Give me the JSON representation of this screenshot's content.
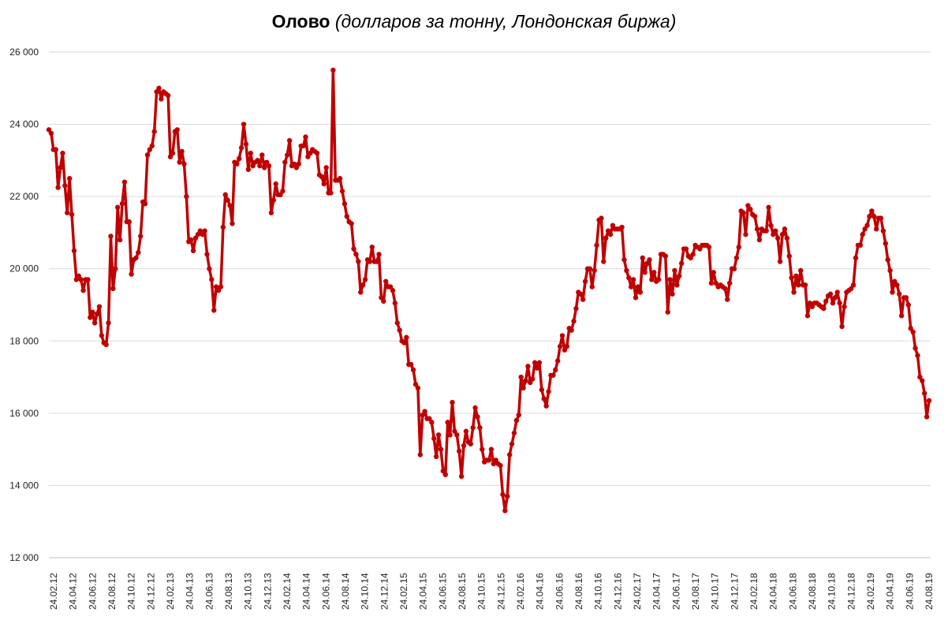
{
  "chart_data": {
    "type": "line",
    "title_bold": "Олово",
    "title_italic": "(долларов за тонну, Лондонская биржа)",
    "xlabel": "",
    "ylabel": "",
    "ylim": [
      12000,
      26000
    ],
    "y_ticks": [
      12000,
      14000,
      16000,
      18000,
      20000,
      22000,
      24000,
      26000
    ],
    "y_tick_labels": [
      "12 000",
      "14 000",
      "16 000",
      "18 000",
      "20 000",
      "22 000",
      "24 000",
      "26 000"
    ],
    "x_tick_labels": [
      "24.02.12",
      "24.04.12",
      "24.06.12",
      "24.08.12",
      "24.10.12",
      "24.12.12",
      "24.02.13",
      "24.04.13",
      "24.06.13",
      "24.08.13",
      "24.10.13",
      "24.12.13",
      "24.02.14",
      "24.04.14",
      "24.06.14",
      "24.08.14",
      "24.10.14",
      "24.12.14",
      "24.02.15",
      "24.04.15",
      "24.06.15",
      "24.08.15",
      "24.10.15",
      "24.12.15",
      "24.02.16",
      "24.04.16",
      "24.06.16",
      "24.08.16",
      "24.10.16",
      "24.12.16",
      "24.02.17",
      "24.04.17",
      "24.06.17",
      "24.08.17",
      "24.10.17",
      "24.12.17",
      "24.02.18",
      "24.04.18",
      "24.06.18",
      "24.08.18",
      "24.10.18",
      "24.12.18",
      "24.02.19",
      "24.04.19",
      "24.06.19",
      "24.08.19"
    ],
    "grid": true,
    "line_color": "#C00000",
    "series": [
      {
        "values": [
          23850,
          23750,
          23300,
          23300,
          22250,
          22800,
          23200,
          22300,
          21550,
          22500,
          21500,
          20500,
          19700,
          19800,
          19700,
          19400,
          19700,
          19700,
          18650,
          18800,
          18500,
          18750,
          18950,
          18150,
          17950,
          17900,
          18500,
          20900,
          19450,
          20000,
          21700,
          20800,
          21800,
          22400,
          21300,
          21300,
          19850,
          20250,
          20300,
          20450,
          20900,
          21850,
          21800,
          23150,
          23300,
          23400,
          23800,
          24900,
          25000,
          24700,
          24900,
          24850,
          24800,
          23100,
          23200,
          23800,
          23850,
          22950,
          23250,
          22900,
          22000,
          20750,
          20800,
          20500,
          20850,
          20950,
          21050,
          20950,
          21050,
          20400,
          20000,
          19700,
          18850,
          19500,
          19400,
          19500,
          21150,
          22050,
          21900,
          21750,
          21250,
          22950,
          22900,
          23050,
          23350,
          24000,
          23450,
          22750,
          23200,
          22850,
          22950,
          23000,
          22850,
          23150,
          22800,
          22950,
          22850,
          21550,
          21900,
          22350,
          22050,
          22050,
          22150,
          22950,
          23150,
          23550,
          22850,
          22900,
          22800,
          22900,
          23400,
          23400,
          23650,
          23100,
          23200,
          23300,
          23250,
          23200,
          22600,
          22550,
          22350,
          22800,
          22100,
          22100,
          25500,
          22450,
          22450,
          22500,
          22150,
          21800,
          21450,
          21300,
          21250,
          20550,
          20400,
          20200,
          19350,
          19550,
          19700,
          20250,
          20200,
          20600,
          20200,
          20200,
          20400,
          19200,
          19100,
          19650,
          19500,
          19500,
          19400,
          19050,
          18500,
          18300,
          18000,
          17950,
          18100,
          17350,
          17350,
          17200,
          16800,
          16700,
          14850,
          15950,
          16050,
          15850,
          15850,
          15750,
          15300,
          14800,
          15400,
          15000,
          14400,
          14300,
          15750,
          15400,
          16300,
          15500,
          15400,
          14950,
          14250,
          15100,
          15500,
          15200,
          15150,
          15600,
          16150,
          15900,
          15600,
          15000,
          14650,
          14700,
          14700,
          15000,
          14600,
          14700,
          14600,
          14550,
          13750,
          13300,
          13700,
          14850,
          15150,
          15450,
          15800,
          15950,
          17000,
          16700,
          16900,
          17300,
          16850,
          16950,
          17400,
          17250,
          17400,
          16650,
          16400,
          16200,
          16600,
          17050,
          17050,
          17200,
          17450,
          17850,
          18150,
          17750,
          17850,
          18350,
          18300,
          18550,
          18900,
          19350,
          19300,
          19150,
          19650,
          20000,
          20000,
          19500,
          19950,
          20650,
          21350,
          21400,
          20200,
          20850,
          21050,
          20950,
          21200,
          21100,
          21100,
          21100,
          21150,
          20250,
          19950,
          19750,
          19500,
          19700,
          19200,
          19500,
          19350,
          20300,
          19900,
          20150,
          20250,
          19700,
          19900,
          19650,
          19700,
          20400,
          20400,
          20350,
          18800,
          19700,
          19300,
          19950,
          19550,
          19800,
          20150,
          20550,
          20550,
          20350,
          20300,
          20400,
          20650,
          20600,
          20550,
          20650,
          20650,
          20650,
          20600,
          19600,
          19900,
          19600,
          19500,
          19550,
          19500,
          19450,
          19150,
          19600,
          20000,
          20000,
          20300,
          20600,
          21600,
          21550,
          20950,
          21750,
          21650,
          21500,
          21450,
          21100,
          20800,
          21100,
          21050,
          21050,
          21700,
          21200,
          20950,
          21050,
          20850,
          20200,
          20950,
          21100,
          20850,
          20350,
          19750,
          19350,
          19800,
          19550,
          19950,
          19550,
          19550,
          18700,
          19050,
          18950,
          19050,
          19050,
          19000,
          18950,
          18900,
          19100,
          19250,
          19300,
          19050,
          19200,
          19350,
          19050,
          18400,
          18950,
          19350,
          19400,
          19450,
          19550,
          20300,
          20650,
          20650,
          20950,
          21100,
          21200,
          21450,
          21600,
          21450,
          21100,
          21400,
          21400,
          21050,
          20700,
          20250,
          19950,
          19350,
          19650,
          19550,
          19300,
          18700,
          19200,
          19200,
          19000,
          18350,
          18250,
          17800,
          17600,
          17000,
          16900,
          16550,
          15900,
          16350
        ]
      }
    ]
  }
}
